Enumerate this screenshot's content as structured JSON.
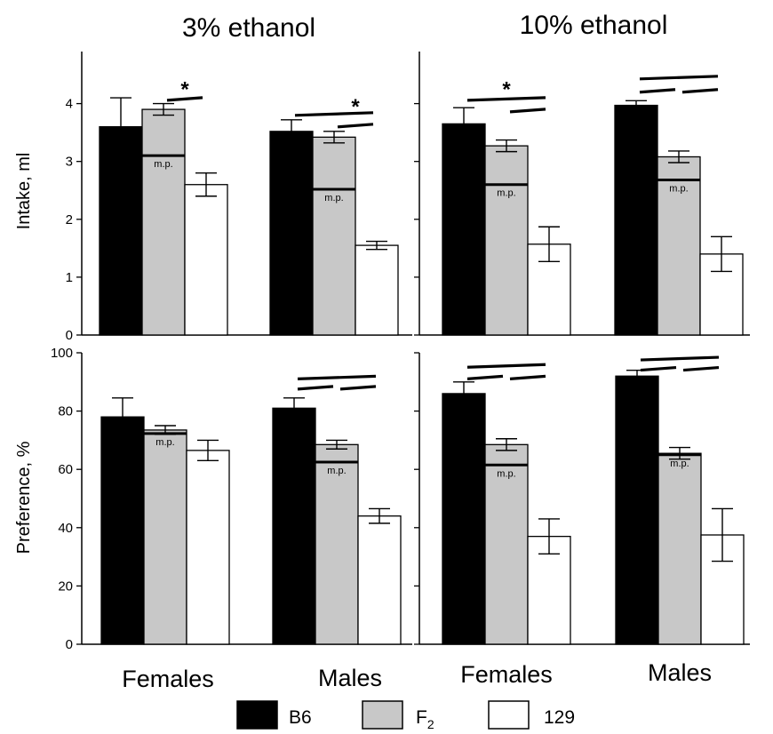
{
  "panel_titles": [
    "3% ethanol",
    "10% ethanol"
  ],
  "group_labels": [
    "Females",
    "Males",
    "Females",
    "Males"
  ],
  "legend": {
    "items": [
      "B6",
      "F",
      "129"
    ],
    "f2_subscript": "2"
  },
  "colors": {
    "B6": "#000000",
    "F2": "#c8c8c8",
    "129": "#ffffff"
  },
  "mp_label": "m.p.",
  "star_label": "*",
  "chart_data": [
    {
      "type": "bar",
      "panel": "intake-3pct",
      "title": "3% ethanol",
      "ylabel": "Intake, ml",
      "ylim": [
        0,
        4.9
      ],
      "yticks": [
        0,
        1,
        2,
        3,
        4
      ],
      "categories": [
        "Females",
        "Males"
      ],
      "series": [
        {
          "name": "B6",
          "values": [
            3.6,
            3.52
          ],
          "errors": [
            0.5,
            0.2
          ]
        },
        {
          "name": "F2",
          "values": [
            3.9,
            3.42
          ],
          "errors": [
            0.1,
            0.1
          ]
        },
        {
          "name": "129",
          "values": [
            2.6,
            1.55
          ],
          "errors": [
            0.2,
            0.07
          ]
        }
      ],
      "midparent": [
        3.1,
        2.52
      ],
      "annotations": [
        {
          "group": 0,
          "stars": [
            {
              "x": "F2-129",
              "y": 4.25
            }
          ],
          "lines": [
            {
              "from": "F2",
              "to": "129",
              "y": 4.08
            }
          ]
        },
        {
          "group": 1,
          "stars": [
            {
              "x": "F2-129",
              "y": 3.95
            }
          ],
          "lines": [
            {
              "from": "B6",
              "to": "129",
              "y": 3.82
            },
            {
              "from": "F2",
              "to": "129",
              "y": 3.62
            }
          ]
        }
      ]
    },
    {
      "type": "bar",
      "panel": "intake-10pct",
      "title": "10% ethanol",
      "ylabel": "",
      "ylim": [
        0,
        4.9
      ],
      "yticks": [
        0,
        1,
        2,
        3,
        4
      ],
      "categories": [
        "Females",
        "Males"
      ],
      "series": [
        {
          "name": "B6",
          "values": [
            3.65,
            3.97
          ],
          "errors": [
            0.28,
            0.08
          ]
        },
        {
          "name": "F2",
          "values": [
            3.27,
            3.08
          ],
          "errors": [
            0.1,
            0.1
          ]
        },
        {
          "name": "129",
          "values": [
            1.57,
            1.4
          ],
          "errors": [
            0.3,
            0.3
          ]
        }
      ],
      "midparent": [
        2.6,
        2.68
      ],
      "annotations": [
        {
          "group": 0,
          "stars": [
            {
              "x": "B6-129",
              "y": 4.25
            }
          ],
          "lines": [
            {
              "from": "B6",
              "to": "129",
              "y": 4.08
            },
            {
              "from": "F2",
              "to": "129",
              "y": 3.88
            }
          ]
        },
        {
          "group": 1,
          "stars": [],
          "lines": [
            {
              "from": "B6",
              "to": "129",
              "y": 4.45
            },
            {
              "from": "B6",
              "to": "F2",
              "y": 4.22
            },
            {
              "from": "F2",
              "to": "129",
              "y": 4.22
            }
          ]
        }
      ]
    },
    {
      "type": "bar",
      "panel": "preference-3pct",
      "title": "",
      "ylabel": "Preference, %",
      "ylim": [
        0,
        100
      ],
      "yticks": [
        0,
        20,
        40,
        60,
        80,
        100
      ],
      "categories": [
        "Females",
        "Males"
      ],
      "series": [
        {
          "name": "B6",
          "values": [
            78,
            81
          ],
          "errors": [
            6.5,
            3.5
          ]
        },
        {
          "name": "F2",
          "values": [
            73.5,
            68.5
          ],
          "errors": [
            1.5,
            1.5
          ]
        },
        {
          "name": "129",
          "values": [
            66.5,
            44
          ],
          "errors": [
            3.5,
            2.5
          ]
        }
      ],
      "midparent": [
        72.3,
        62.5
      ],
      "annotations": [
        {
          "group": 0,
          "stars": [],
          "lines": []
        },
        {
          "group": 1,
          "stars": [],
          "lines": [
            {
              "from": "B6",
              "to": "129",
              "y": 91.5
            },
            {
              "from": "B6",
              "to": "F2",
              "y": 88
            },
            {
              "from": "F2",
              "to": "129",
              "y": 88
            }
          ]
        }
      ]
    },
    {
      "type": "bar",
      "panel": "preference-10pct",
      "title": "",
      "ylabel": "",
      "ylim": [
        0,
        100
      ],
      "yticks": [
        0,
        20,
        40,
        60,
        80,
        100
      ],
      "categories": [
        "Females",
        "Males"
      ],
      "series": [
        {
          "name": "B6",
          "values": [
            86,
            92
          ],
          "errors": [
            4,
            2
          ]
        },
        {
          "name": "F2",
          "values": [
            68.5,
            65.5
          ],
          "errors": [
            2,
            2
          ]
        },
        {
          "name": "129",
          "values": [
            37,
            37.5
          ],
          "errors": [
            6,
            9
          ]
        }
      ],
      "midparent": [
        61.5,
        65
      ],
      "annotations": [
        {
          "group": 0,
          "stars": [],
          "lines": [
            {
              "from": "B6",
              "to": "129",
              "y": 95.5
            },
            {
              "from": "B6",
              "to": "F2",
              "y": 91.5
            },
            {
              "from": "F2",
              "to": "129",
              "y": 91.5
            }
          ]
        },
        {
          "group": 1,
          "stars": [],
          "lines": [
            {
              "from": "B6",
              "to": "129",
              "y": 98
            },
            {
              "from": "B6",
              "to": "F2",
              "y": 94.5
            },
            {
              "from": "F2",
              "to": "129",
              "y": 94.5
            }
          ]
        }
      ]
    }
  ]
}
